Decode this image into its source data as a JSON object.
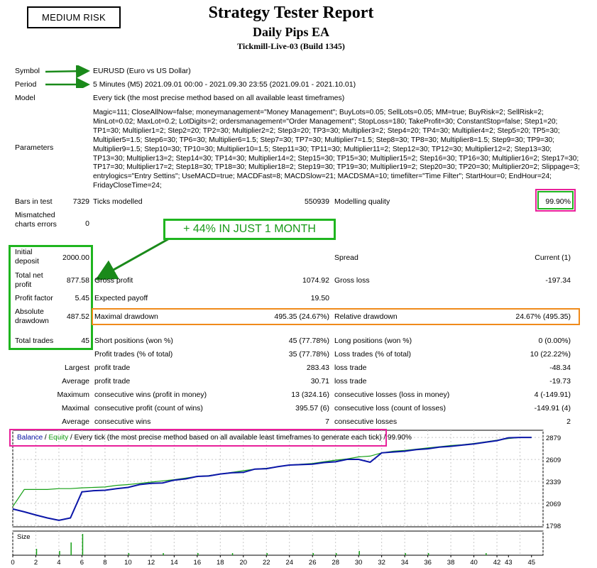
{
  "header": {
    "risk_label": "MEDIUM RISK",
    "title": "Strategy Tester Report",
    "ea_name": "Daily Pips EA",
    "server": "Tickmill-Live-03 (Build 1345)"
  },
  "info": {
    "symbol_label": "Symbol",
    "symbol_value": "EURUSD (Euro vs US Dollar)",
    "period_label": "Period",
    "period_value": "5 Minutes (M5) 2021.09.01 00:00 - 2021.09.30 23:55 (2021.09.01 - 2021.10.01)",
    "model_label": "Model",
    "model_value": "Every tick (the most precise method based on all available least timeframes)",
    "parameters_label": "Parameters",
    "parameters_value": "Magic=111; CloseAllNow=false; moneymanagement=\"Money Management\"; BuyLots=0.05; SellLots=0.05; MM=true; BuyRisk=2; SellRisk=2; MinLot=0.02; MaxLot=0.2; LotDigits=2; ordersmanagement=\"Order Management\"; StopLoss=180; TakeProfit=30; ConstantStop=false; Step1=20; TP1=30; Multiplier1=2; Step2=20; TP2=30; Multiplier2=2; Step3=20; TP3=30; Multiplier3=2; Step4=20; TP4=30; Multiplier4=2; Step5=20; TP5=30; Multiplier5=1.5; Step6=30; TP6=30; Multiplier6=1.5; Step7=30; TP7=30; Multiplier7=1.5; Step8=30; TP8=30; Multiplier8=1.5; Step9=30; TP9=30; Multiplier9=1.5; Step10=30; TP10=30; Multiplier10=1.5; Step11=30; TP11=30; Multiplier11=2; Step12=30; TP12=30; Multiplier12=2; Step13=30; TP13=30; Multiplier13=2; Step14=30; TP14=30; Multiplier14=2; Step15=30; TP15=30; Multiplier15=2; Step16=30; TP16=30; Multiplier16=2; Step17=30; TP17=30; Multiplier17=2; Step18=30; TP18=30; Multiplier18=2; Step19=30; TP19=30; Multiplier19=2; Step20=30; TP20=30; Multiplier20=2; Slippage=3; entrylogics=\"Entry Settins\"; UseMACD=true; MACDFast=8; MACDSlow=21; MACDSMA=10; timefilter=\"Time Filter\"; StartHour=0; EndHour=24; FridayCloseTime=24;"
  },
  "stats": {
    "bars_label": "Bars in test",
    "bars_value": "7329",
    "ticks_label": "Ticks modelled",
    "ticks_value": "550939",
    "quality_label": "Modelling quality",
    "quality_value": "99.90%",
    "mismatch_label": "Mismatched charts errors",
    "mismatch_value": "0",
    "callout": "+ 44% IN JUST 1 MONTH",
    "deposit_label": "Initial deposit",
    "deposit_value": "2000.00",
    "spread_label": "Spread",
    "spread_value": "Current (1)",
    "netprofit_label": "Total net profit",
    "netprofit_value": "877.58",
    "grossprofit_label": "Gross profit",
    "grossprofit_value": "1074.92",
    "grossloss_label": "Gross loss",
    "grossloss_value": "-197.34",
    "pf_label": "Profit factor",
    "pf_value": "5.45",
    "payoff_label": "Expected payoff",
    "payoff_value": "19.50",
    "absdd_label": "Absolute drawdown",
    "absdd_value": "487.52",
    "maxdd_label": "Maximal drawdown",
    "maxdd_value": "495.35 (24.67%)",
    "reldd_label": "Relative drawdown",
    "reldd_value": "24.67% (495.35)",
    "trades_label": "Total trades",
    "trades_value": "45",
    "short_label": "Short positions (won %)",
    "short_value": "45 (77.78%)",
    "long_label": "Long positions (won %)",
    "long_value": "0 (0.00%)",
    "ptrades_label": "Profit trades (% of total)",
    "ptrades_value": "35 (77.78%)",
    "ltrades_label": "Loss trades (% of total)",
    "ltrades_value": "10 (22.22%)",
    "largest_label": "Largest",
    "lpt_label": "profit trade",
    "lpt_value": "283.43",
    "llt_label": "loss trade",
    "llt_value": "-48.34",
    "average_label": "Average",
    "apt_label": "profit trade",
    "apt_value": "30.71",
    "alt_label": "loss trade",
    "alt_value": "-19.73",
    "maximum_label": "Maximum",
    "mcw_label": "consecutive wins (profit in money)",
    "mcw_value": "13 (324.16)",
    "mcl_label": "consecutive losses (loss in money)",
    "mcl_value": "4 (-149.91)",
    "maximal_label": "Maximal",
    "mcp_label": "consecutive profit (count of wins)",
    "mcp_value": "395.57 (6)",
    "mcloss_label": "consecutive loss (count of losses)",
    "mcloss_value": "-149.91 (4)",
    "average2_label": "Average",
    "acw_label": "consecutive wins",
    "acw_value": "7",
    "acl_label": "consecutive losses",
    "acl_value": "2"
  },
  "chart_legend": {
    "balance": "Balance",
    "sep1": " / ",
    "equity": "Equity",
    "rest": " / Every tick (the most precise method based on all available least timeframes to generate each tick) / 99.90%"
  },
  "colors": {
    "balance": "#0b16a8",
    "equity": "#16a016",
    "highlight_green": "#1fb51f",
    "highlight_magenta": "#e8219a",
    "highlight_orange": "#f08a1a"
  },
  "chart_data": {
    "type": "line",
    "x": [
      0,
      1,
      2,
      3,
      4,
      5,
      6,
      7,
      8,
      9,
      10,
      11,
      12,
      13,
      14,
      15,
      16,
      17,
      18,
      19,
      20,
      21,
      22,
      23,
      24,
      25,
      26,
      27,
      28,
      29,
      30,
      31,
      32,
      33,
      34,
      35,
      36,
      37,
      38,
      39,
      40,
      41,
      42,
      43,
      44,
      45
    ],
    "xlim": [
      0,
      46
    ],
    "ylim": [
      1798,
      2950
    ],
    "yticks": [
      1798,
      2069,
      2339,
      2609,
      2879
    ],
    "xticks": [
      "0",
      "2",
      "4",
      "6",
      "8",
      "10",
      "12",
      "14",
      "16",
      "18",
      "20",
      "22",
      "24",
      "26",
      "28",
      "30",
      "32",
      "34",
      "36",
      "38",
      "40",
      "42",
      "43",
      "45"
    ],
    "series": [
      {
        "name": "Balance",
        "values": [
          2000,
          1965,
          1925,
          1890,
          1860,
          1890,
          2210,
          2225,
          2230,
          2250,
          2265,
          2300,
          2315,
          2320,
          2355,
          2370,
          2400,
          2405,
          2430,
          2445,
          2450,
          2490,
          2495,
          2520,
          2540,
          2545,
          2550,
          2570,
          2580,
          2610,
          2610,
          2575,
          2690,
          2700,
          2710,
          2730,
          2740,
          2760,
          2770,
          2785,
          2800,
          2820,
          2840,
          2875,
          2879,
          2879
        ]
      },
      {
        "name": "Equity",
        "values": [
          2030,
          2240,
          2240,
          2240,
          2250,
          2250,
          2260,
          2265,
          2270,
          2290,
          2300,
          2315,
          2330,
          2345,
          2360,
          2380,
          2400,
          2410,
          2430,
          2450,
          2470,
          2490,
          2500,
          2520,
          2540,
          2550,
          2560,
          2580,
          2600,
          2615,
          2640,
          2650,
          2690,
          2710,
          2720,
          2735,
          2750,
          2765,
          2780,
          2790,
          2805,
          2825,
          2845,
          2865,
          2879,
          2879
        ]
      }
    ],
    "size_label": "Size",
    "volumes": [
      0,
      0,
      0.3,
      0,
      0.2,
      0.6,
      1.0,
      0,
      0,
      0,
      0.1,
      0,
      0,
      0.1,
      0,
      0,
      0.1,
      0,
      0,
      0.1,
      0,
      0,
      0.1,
      0,
      0,
      0,
      0.1,
      0,
      0.1,
      0,
      0.2,
      0,
      0,
      0,
      0.1,
      0,
      0.1,
      0,
      0,
      0,
      0,
      0.1,
      0,
      0,
      0,
      0
    ]
  }
}
